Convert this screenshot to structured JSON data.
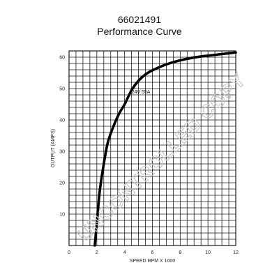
{
  "header": {
    "part_number": "66021491",
    "title": "Performance Curve"
  },
  "watermark": "UNCONTROLLED COPY",
  "colors": {
    "grid": "#1a1a1a",
    "curve": "#000000",
    "watermark": "#c8c8c8"
  },
  "chart_data": {
    "type": "line",
    "title": "Performance Curve",
    "xlabel": "SPEED RPM X 1000",
    "ylabel": "OUTPUT (AMPS)",
    "xlim": [
      0,
      12
    ],
    "ylim": [
      0,
      62
    ],
    "xticks": [
      0,
      2,
      4,
      6,
      8,
      10,
      12
    ],
    "yticks": [
      10,
      20,
      30,
      40,
      50,
      60
    ],
    "grid": true,
    "grid_step_x": 0.5,
    "grid_step_y": 2,
    "series": [
      {
        "name": "24V 55A",
        "x": [
          1.85,
          2.0,
          2.2,
          2.5,
          2.8,
          3.2,
          3.6,
          4.0,
          4.5,
          5.0,
          5.5,
          6.0,
          7.0,
          8.0,
          9.0,
          10.0,
          11.0,
          12.0
        ],
        "y": [
          0,
          7,
          17,
          26,
          33,
          38,
          42,
          45,
          49.5,
          52.5,
          54.5,
          55.8,
          57.7,
          59.0,
          59.9,
          60.5,
          61.0,
          61.5
        ]
      }
    ]
  }
}
